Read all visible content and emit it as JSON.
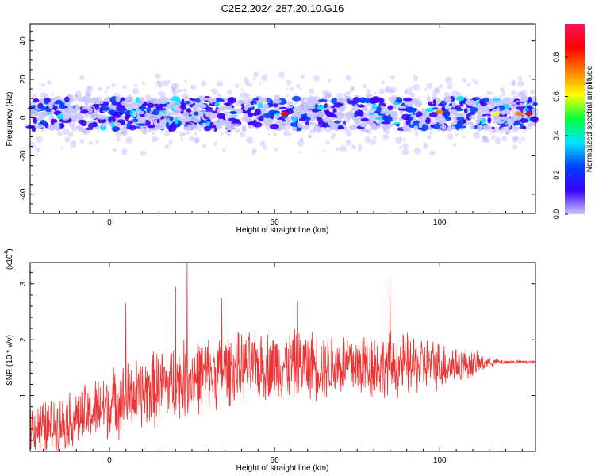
{
  "title": "C2E2.2024.287.20.10.G16",
  "chart_data": [
    {
      "type": "heatmap",
      "name": "spectrogram",
      "xlabel": "Height of straight line (km)",
      "ylabel": "Frequency (Hz)",
      "xlim": [
        -24,
        129
      ],
      "ylim": [
        -50,
        49
      ],
      "xticks": [
        0,
        50,
        100
      ],
      "yticks": [
        -40,
        -20,
        0,
        20,
        40
      ],
      "band_center_hz": 2,
      "band_halfwidth_hz": 8,
      "noise_extent_hz": 22,
      "bright_spots": [
        {
          "x": 53,
          "y": 2,
          "value": 0.85
        },
        {
          "x": 100,
          "y": 3,
          "value": 0.75
        },
        {
          "x": 117,
          "y": 2,
          "value": 0.7
        },
        {
          "x": 124,
          "y": 2,
          "value": 0.8
        },
        {
          "x": 127,
          "y": 2,
          "value": 0.85
        },
        {
          "x": 64,
          "y": 5,
          "value": 0.45
        },
        {
          "x": 97,
          "y": 4,
          "value": 0.45
        },
        {
          "x": 10,
          "y": 5,
          "value": 0.35
        }
      ],
      "grid": false
    },
    {
      "type": "colorbar",
      "name": "amplitude-scale",
      "label": "Normalized spectral amplitude",
      "range": [
        0,
        0.97
      ],
      "ticks": [
        0.0,
        0.2,
        0.4,
        0.6,
        0.8
      ],
      "tick_labels": [
        "0.0",
        "0.2",
        "0.4",
        "0.6",
        "0.8"
      ],
      "colormap": [
        "#c8c8ff",
        "#3a00ff",
        "#0040ff",
        "#00e5ff",
        "#00ff40",
        "#ffff00",
        "#ff8000",
        "#ff0000",
        "#ff1060"
      ]
    },
    {
      "type": "line",
      "name": "snr-trace",
      "xlabel": "Height of straight line (km)",
      "ylabel": "SNR (10 * v/v)",
      "multiplier_label": "(x10",
      "multiplier_exp": "4",
      "multiplier_close": ")",
      "xlim": [
        -24,
        129
      ],
      "ylim": [
        0,
        33800
      ],
      "xticks": [
        0,
        50,
        100
      ],
      "yticks": [
        10000,
        20000,
        30000
      ],
      "ytick_labels": [
        "1",
        "2",
        "3"
      ],
      "color": "#ee3333",
      "envelope": {
        "x": [
          -24,
          -20,
          -15,
          -10,
          -5,
          0,
          10,
          20,
          30,
          40,
          50,
          60,
          70,
          80,
          90,
          100,
          110,
          115,
          120,
          129
        ],
        "mean": [
          5000,
          4000,
          5000,
          6000,
          7000,
          8500,
          10500,
          12500,
          14000,
          15000,
          15500,
          15500,
          15500,
          15500,
          15500,
          15500,
          15500,
          16000,
          16000,
          16000
        ],
        "amplitude": [
          5000,
          6000,
          5500,
          6000,
          6500,
          7000,
          7500,
          8000,
          7500,
          7000,
          7000,
          7000,
          7000,
          7000,
          6500,
          5000,
          3000,
          1000,
          400,
          300
        ]
      },
      "peaks": [
        {
          "x": 23.5,
          "y": 33800
        },
        {
          "x": 85,
          "y": 31200
        },
        {
          "x": 20,
          "y": 29500
        },
        {
          "x": 5,
          "y": 26500
        },
        {
          "x": 34,
          "y": 27500
        },
        {
          "x": 57,
          "y": 27000
        }
      ],
      "grid": false
    }
  ]
}
